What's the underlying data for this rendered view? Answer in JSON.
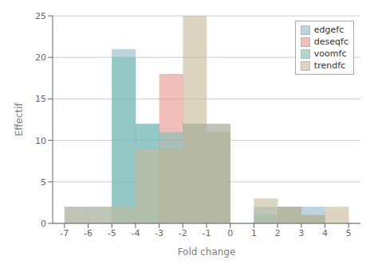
{
  "chart_data": {
    "type": "bar",
    "title": "",
    "xlabel": "Fold change",
    "ylabel": "Effectif",
    "x": [
      -6.5,
      -5.5,
      -4.5,
      -3.5,
      -2.5,
      -1.5,
      -0.5,
      0.5,
      1.5,
      2.5,
      3.5,
      4.5
    ],
    "series": [
      {
        "name": "edgefc",
        "color": "#8cb8cb",
        "values": [
          2,
          2,
          21,
          12,
          9,
          12,
          12,
          null,
          2,
          2,
          2,
          null
        ]
      },
      {
        "name": "deseqfc",
        "color": "#e8928c",
        "values": [
          null,
          null,
          null,
          null,
          18,
          12,
          11,
          null,
          null,
          2,
          1,
          null
        ]
      },
      {
        "name": "voomfc",
        "color": "#7bbfb5",
        "values": [
          null,
          null,
          20,
          12,
          11,
          12,
          11,
          null,
          1,
          2,
          1,
          null
        ]
      },
      {
        "name": "trendfc",
        "color": "#c4b99a",
        "values": [
          2,
          2,
          2,
          9,
          9,
          25,
          12,
          null,
          3,
          2,
          1,
          2
        ]
      }
    ],
    "xlim": [
      -7.5,
      5.5
    ],
    "xticks": [
      -7,
      -6,
      -5,
      -4,
      -3,
      -2,
      -1,
      0,
      1,
      2,
      3,
      4,
      5
    ],
    "ylim": [
      0,
      25
    ],
    "yticks": [
      0,
      5,
      10,
      15,
      20,
      25
    ],
    "grid": true,
    "legend": "upper right"
  }
}
